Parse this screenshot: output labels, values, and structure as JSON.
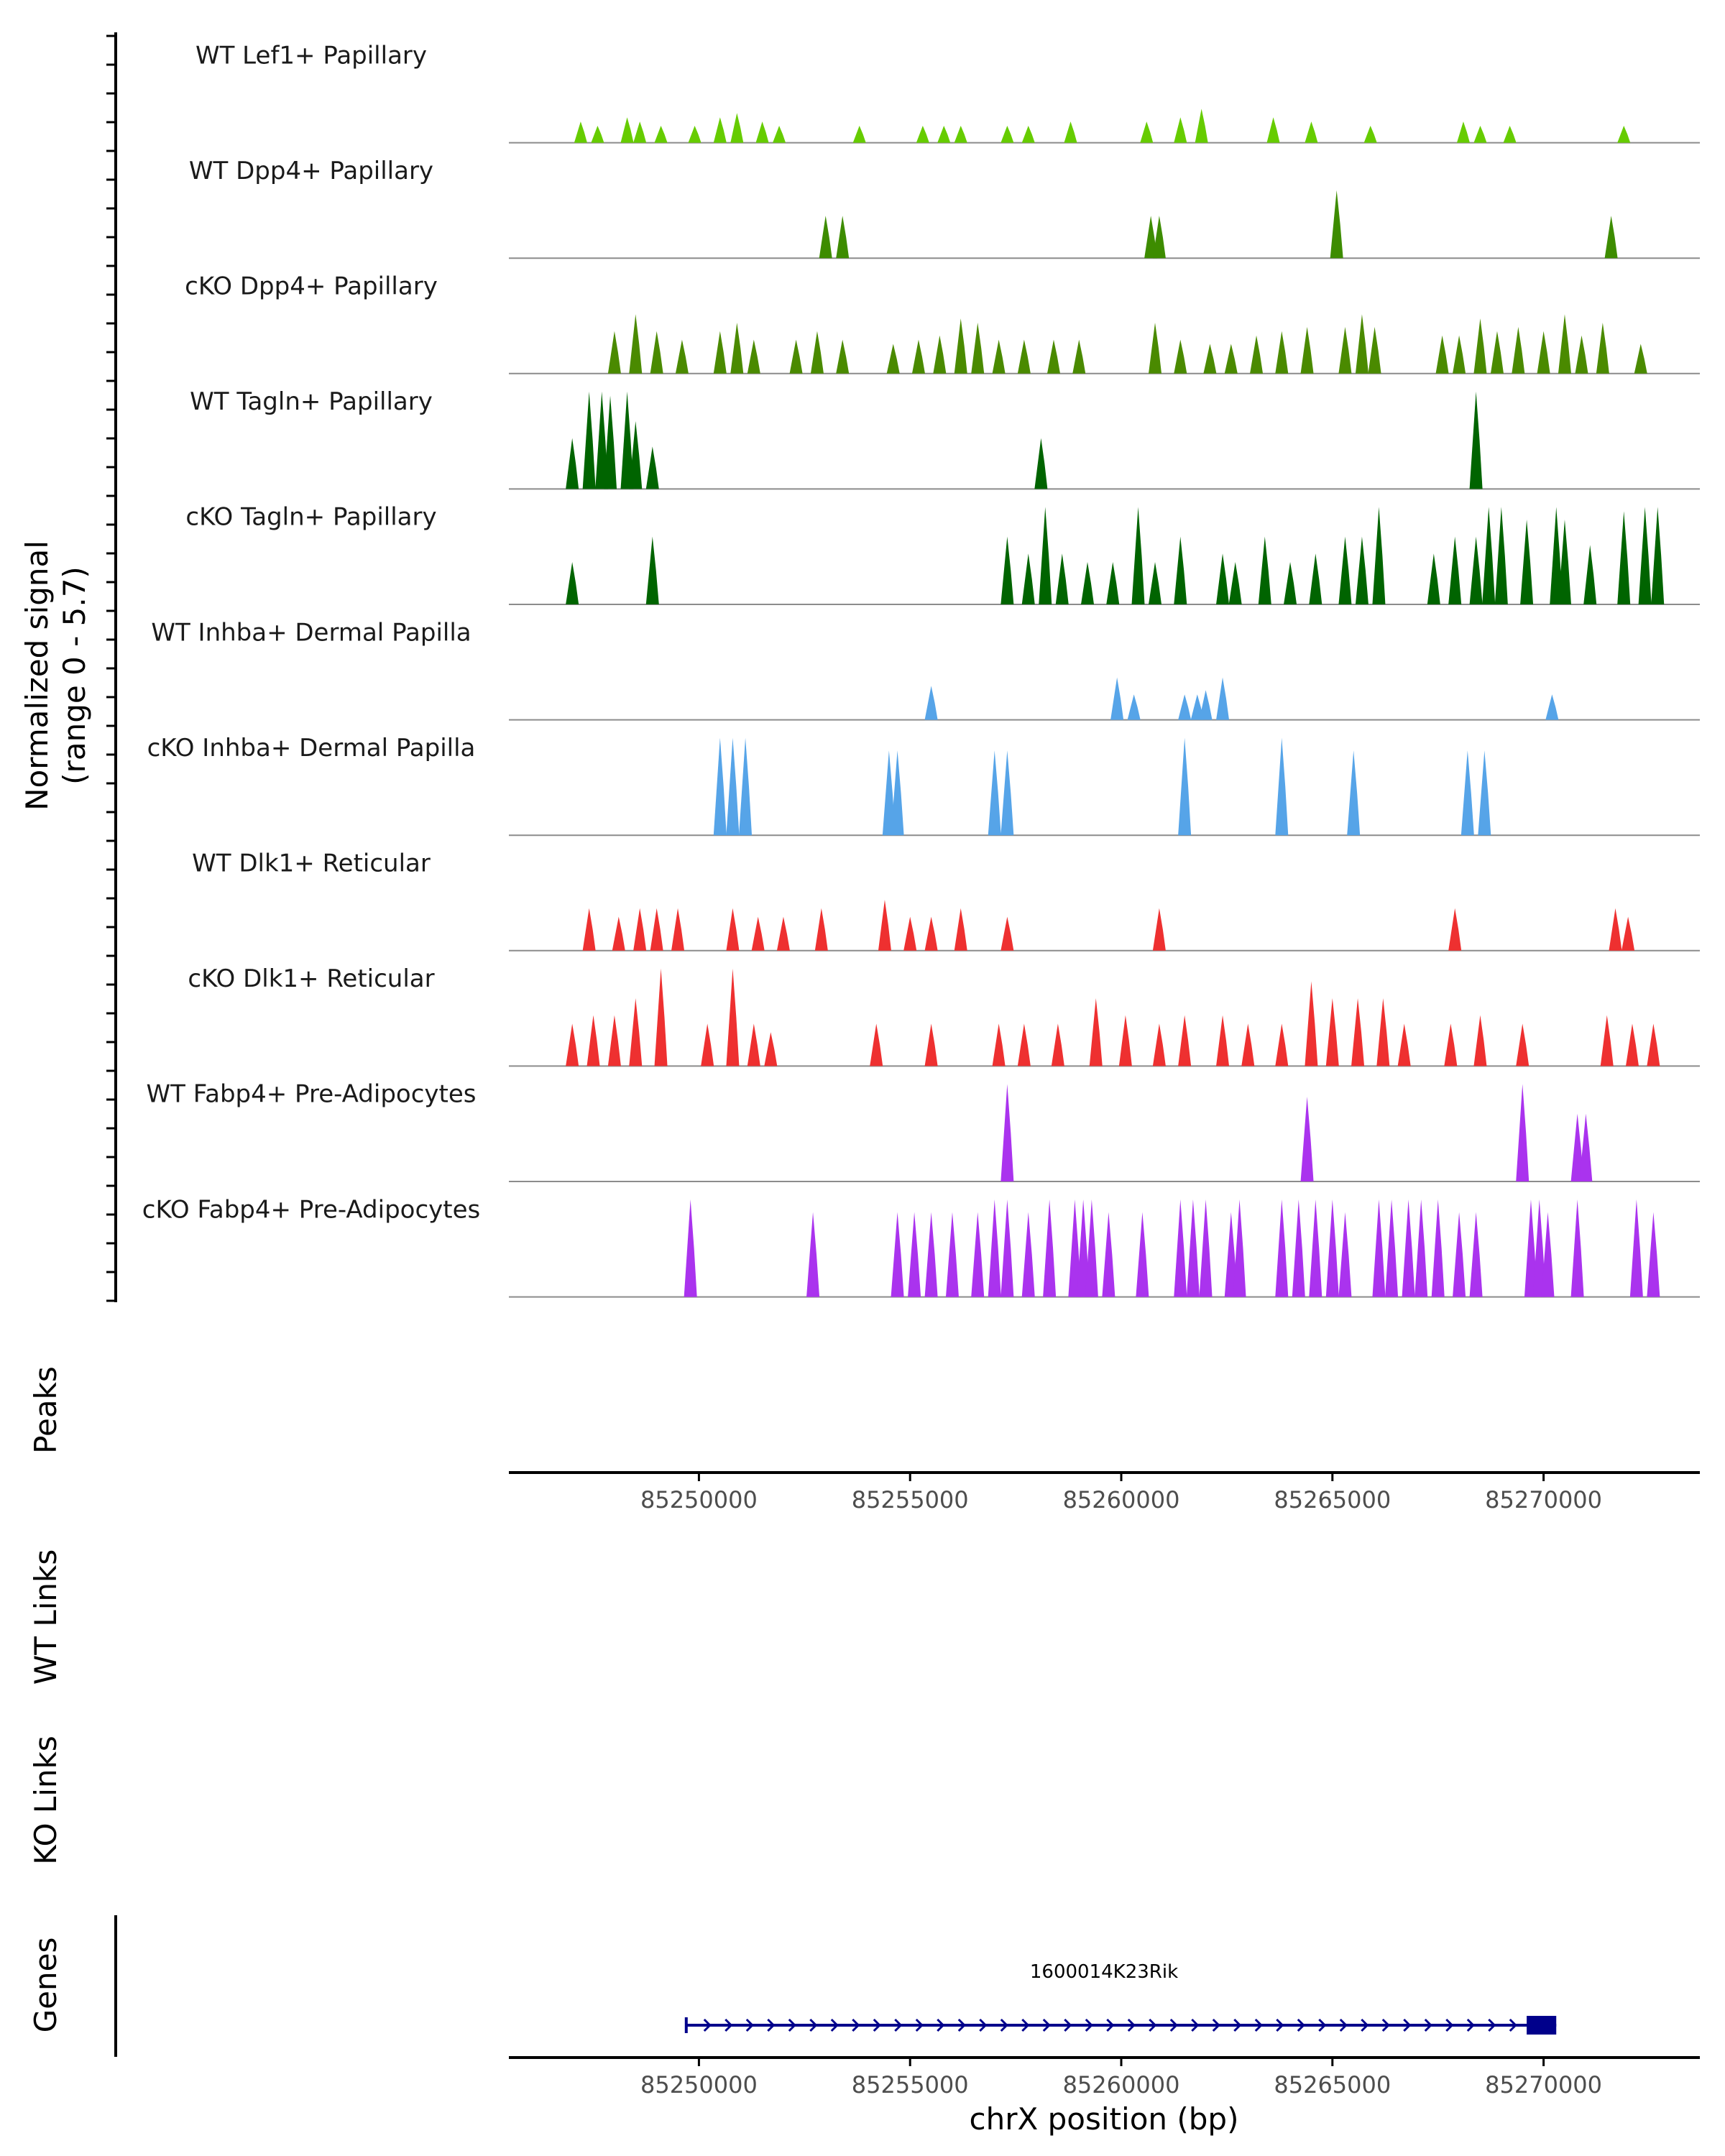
{
  "chart_data": {
    "type": "area",
    "title": "",
    "ylabel_line1": "Normalized signal",
    "ylabel_line2": "(range 0 - 5.7)",
    "ylim": [
      0,
      5.7
    ],
    "xlim": [
      85245500,
      85273700
    ],
    "xlabel": "chrX position (bp)",
    "x_ticks": [
      85250000,
      85255000,
      85260000,
      85265000,
      85270000
    ],
    "x_tick_labels": [
      "85250000",
      "85255000",
      "85260000",
      "85265000",
      "85270000"
    ],
    "panel_labels": {
      "peaks": "Peaks",
      "wt_links": "WT Links",
      "ko_links": "KO Links",
      "genes": "Genes"
    },
    "tracks": [
      {
        "name": "WT Lef1+ Papillary",
        "color": "#66cc00",
        "peaks": [
          [
            85247200,
            0.25
          ],
          [
            85247600,
            0.2
          ],
          [
            85248300,
            0.3
          ],
          [
            85248600,
            0.25
          ],
          [
            85249100,
            0.2
          ],
          [
            85249900,
            0.2
          ],
          [
            85250500,
            0.3
          ],
          [
            85250900,
            0.35
          ],
          [
            85251500,
            0.25
          ],
          [
            85251900,
            0.2
          ],
          [
            85253800,
            0.2
          ],
          [
            85255300,
            0.2
          ],
          [
            85255800,
            0.2
          ],
          [
            85256200,
            0.2
          ],
          [
            85257300,
            0.2
          ],
          [
            85257800,
            0.2
          ],
          [
            85258800,
            0.25
          ],
          [
            85260600,
            0.25
          ],
          [
            85261400,
            0.3
          ],
          [
            85261900,
            0.4
          ],
          [
            85263600,
            0.3
          ],
          [
            85264500,
            0.25
          ],
          [
            85265900,
            0.2
          ],
          [
            85268100,
            0.25
          ],
          [
            85268500,
            0.2
          ],
          [
            85269200,
            0.2
          ],
          [
            85271900,
            0.2
          ]
        ]
      },
      {
        "name": "WT Dpp4+ Papillary",
        "color": "#3d8c00",
        "peaks": [
          [
            85253000,
            0.5
          ],
          [
            85253400,
            0.5
          ],
          [
            85260700,
            0.5
          ],
          [
            85260900,
            0.5
          ],
          [
            85265100,
            0.8
          ],
          [
            85271600,
            0.5
          ]
        ]
      },
      {
        "name": "cKO Dpp4+ Papillary",
        "color": "#4a8a00",
        "peaks": [
          [
            85248000,
            0.5
          ],
          [
            85248500,
            0.7
          ],
          [
            85249000,
            0.5
          ],
          [
            85249600,
            0.4
          ],
          [
            85250500,
            0.5
          ],
          [
            85250900,
            0.6
          ],
          [
            85251300,
            0.4
          ],
          [
            85252300,
            0.4
          ],
          [
            85252800,
            0.5
          ],
          [
            85253400,
            0.4
          ],
          [
            85254600,
            0.35
          ],
          [
            85255200,
            0.4
          ],
          [
            85255700,
            0.45
          ],
          [
            85256200,
            0.65
          ],
          [
            85256600,
            0.6
          ],
          [
            85257100,
            0.4
          ],
          [
            85257700,
            0.4
          ],
          [
            85258400,
            0.4
          ],
          [
            85259000,
            0.4
          ],
          [
            85260800,
            0.6
          ],
          [
            85261400,
            0.4
          ],
          [
            85262100,
            0.35
          ],
          [
            85262600,
            0.35
          ],
          [
            85263200,
            0.45
          ],
          [
            85263800,
            0.5
          ],
          [
            85264400,
            0.55
          ],
          [
            85265300,
            0.55
          ],
          [
            85265700,
            0.7
          ],
          [
            85266000,
            0.55
          ],
          [
            85267600,
            0.45
          ],
          [
            85268000,
            0.45
          ],
          [
            85268500,
            0.65
          ],
          [
            85268900,
            0.5
          ],
          [
            85269400,
            0.55
          ],
          [
            85270000,
            0.5
          ],
          [
            85270500,
            0.7
          ],
          [
            85270900,
            0.45
          ],
          [
            85271400,
            0.6
          ],
          [
            85272300,
            0.35
          ]
        ]
      },
      {
        "name": "WT Tagln+ Papillary",
        "color": "#006400",
        "peaks": [
          [
            85247000,
            0.6
          ],
          [
            85247400,
            1.2
          ],
          [
            85247700,
            1.2
          ],
          [
            85247900,
            1.1
          ],
          [
            85248300,
            1.2
          ],
          [
            85248500,
            0.8
          ],
          [
            85248900,
            0.5
          ],
          [
            85258100,
            0.6
          ],
          [
            85268400,
            1.2
          ]
        ]
      },
      {
        "name": "cKO Tagln+ Papillary",
        "color": "#006400",
        "peaks": [
          [
            85247000,
            0.5
          ],
          [
            85248900,
            0.8
          ],
          [
            85257300,
            0.8
          ],
          [
            85257800,
            0.6
          ],
          [
            85258200,
            1.3
          ],
          [
            85258600,
            0.6
          ],
          [
            85259200,
            0.5
          ],
          [
            85259800,
            0.5
          ],
          [
            85260400,
            1.2
          ],
          [
            85260800,
            0.5
          ],
          [
            85261400,
            0.8
          ],
          [
            85262400,
            0.6
          ],
          [
            85262700,
            0.5
          ],
          [
            85263400,
            0.8
          ],
          [
            85264000,
            0.5
          ],
          [
            85264600,
            0.6
          ],
          [
            85265300,
            0.8
          ],
          [
            85265700,
            0.8
          ],
          [
            85266100,
            1.2
          ],
          [
            85267400,
            0.6
          ],
          [
            85267900,
            0.8
          ],
          [
            85268400,
            0.8
          ],
          [
            85268700,
            1.5
          ],
          [
            85269000,
            1.2
          ],
          [
            85269600,
            1.0
          ],
          [
            85270300,
            2.0
          ],
          [
            85270500,
            1.0
          ],
          [
            85271100,
            0.7
          ],
          [
            85271900,
            1.1
          ],
          [
            85272400,
            1.4
          ],
          [
            85272700,
            1.2
          ]
        ]
      },
      {
        "name": "WT Inhba+ Dermal Papilla",
        "color": "#56a4e8",
        "peaks": [
          [
            85255500,
            0.4
          ],
          [
            85259900,
            0.5
          ],
          [
            85260300,
            0.3
          ],
          [
            85261500,
            0.3
          ],
          [
            85261800,
            0.3
          ],
          [
            85262000,
            0.35
          ],
          [
            85262400,
            0.5
          ],
          [
            85270200,
            0.3
          ]
        ]
      },
      {
        "name": "cKO Inhba+ Dermal Papilla",
        "color": "#56a4e8",
        "peaks": [
          [
            85250500,
            1.2
          ],
          [
            85250800,
            3.2
          ],
          [
            85251100,
            1.8
          ],
          [
            85254500,
            1.0
          ],
          [
            85254700,
            1.0
          ],
          [
            85257000,
            1.0
          ],
          [
            85257300,
            1.0
          ],
          [
            85261500,
            1.8
          ],
          [
            85263800,
            1.8
          ],
          [
            85265500,
            1.0
          ],
          [
            85268200,
            1.0
          ],
          [
            85268600,
            1.0
          ]
        ]
      },
      {
        "name": "WT Dlk1+ Reticular",
        "color": "#ee3030",
        "peaks": [
          [
            85247400,
            0.5
          ],
          [
            85248100,
            0.4
          ],
          [
            85248600,
            0.5
          ],
          [
            85249000,
            0.5
          ],
          [
            85249500,
            0.5
          ],
          [
            85250800,
            0.5
          ],
          [
            85251400,
            0.4
          ],
          [
            85252000,
            0.4
          ],
          [
            85252900,
            0.5
          ],
          [
            85254400,
            0.6
          ],
          [
            85255000,
            0.4
          ],
          [
            85255500,
            0.4
          ],
          [
            85256200,
            0.5
          ],
          [
            85257300,
            0.4
          ],
          [
            85260900,
            0.5
          ],
          [
            85267900,
            0.5
          ],
          [
            85271700,
            0.5
          ],
          [
            85272000,
            0.4
          ]
        ]
      },
      {
        "name": "cKO Dlk1+ Reticular",
        "color": "#ee3030",
        "peaks": [
          [
            85247000,
            0.5
          ],
          [
            85247500,
            0.6
          ],
          [
            85248000,
            0.6
          ],
          [
            85248500,
            0.8
          ],
          [
            85249100,
            1.2
          ],
          [
            85250200,
            0.5
          ],
          [
            85250800,
            1.3
          ],
          [
            85251300,
            0.5
          ],
          [
            85251700,
            0.4
          ],
          [
            85254200,
            0.5
          ],
          [
            85255500,
            0.5
          ],
          [
            85257100,
            0.5
          ],
          [
            85257700,
            0.5
          ],
          [
            85258500,
            0.5
          ],
          [
            85259400,
            0.8
          ],
          [
            85260100,
            0.6
          ],
          [
            85260900,
            0.5
          ],
          [
            85261500,
            0.6
          ],
          [
            85262400,
            0.6
          ],
          [
            85263000,
            0.5
          ],
          [
            85263800,
            0.5
          ],
          [
            85264500,
            1.0
          ],
          [
            85265000,
            0.8
          ],
          [
            85265600,
            0.8
          ],
          [
            85266200,
            0.8
          ],
          [
            85266700,
            0.5
          ],
          [
            85267800,
            0.5
          ],
          [
            85268500,
            0.6
          ],
          [
            85269500,
            0.5
          ],
          [
            85271500,
            0.6
          ],
          [
            85272100,
            0.5
          ],
          [
            85272600,
            0.5
          ]
        ]
      },
      {
        "name": "WT Fabp4+ Pre-Adipocytes",
        "color": "#aa33ee",
        "peaks": [
          [
            85257300,
            1.5
          ],
          [
            85264400,
            1.0
          ],
          [
            85269500,
            1.5
          ],
          [
            85270800,
            0.8
          ],
          [
            85271000,
            0.8
          ]
        ]
      },
      {
        "name": "cKO Fabp4+ Pre-Adipocytes",
        "color": "#aa33ee",
        "peaks": [
          [
            85249800,
            1.8
          ],
          [
            85252700,
            1.0
          ],
          [
            85254700,
            1.0
          ],
          [
            85255100,
            1.0
          ],
          [
            85255500,
            1.0
          ],
          [
            85256000,
            1.0
          ],
          [
            85256600,
            1.0
          ],
          [
            85257000,
            1.8
          ],
          [
            85257300,
            2.8
          ],
          [
            85257800,
            1.0
          ],
          [
            85258300,
            1.5
          ],
          [
            85258900,
            2.5
          ],
          [
            85259100,
            3.5
          ],
          [
            85259300,
            2.0
          ],
          [
            85259700,
            1.0
          ],
          [
            85260500,
            1.0
          ],
          [
            85261400,
            3.2
          ],
          [
            85261700,
            2.0
          ],
          [
            85262000,
            2.5
          ],
          [
            85262600,
            1.0
          ],
          [
            85262800,
            2.5
          ],
          [
            85263800,
            3.2
          ],
          [
            85264200,
            2.5
          ],
          [
            85264600,
            2.2
          ],
          [
            85265000,
            1.8
          ],
          [
            85265300,
            1.0
          ],
          [
            85266100,
            3.0
          ],
          [
            85266400,
            1.5
          ],
          [
            85266800,
            1.5
          ],
          [
            85267100,
            1.5
          ],
          [
            85267500,
            2.0
          ],
          [
            85268000,
            1.0
          ],
          [
            85268400,
            1.0
          ],
          [
            85269700,
            2.5
          ],
          [
            85269900,
            1.5
          ],
          [
            85270100,
            1.0
          ],
          [
            85270800,
            1.8
          ],
          [
            85272200,
            1.5
          ],
          [
            85272600,
            1.0
          ]
        ]
      }
    ],
    "gene": {
      "name": "1600014K23Rik",
      "start": 85249700,
      "end": 85270300,
      "cds_start": 85269600,
      "strand": "+",
      "color": "#00008b"
    }
  }
}
